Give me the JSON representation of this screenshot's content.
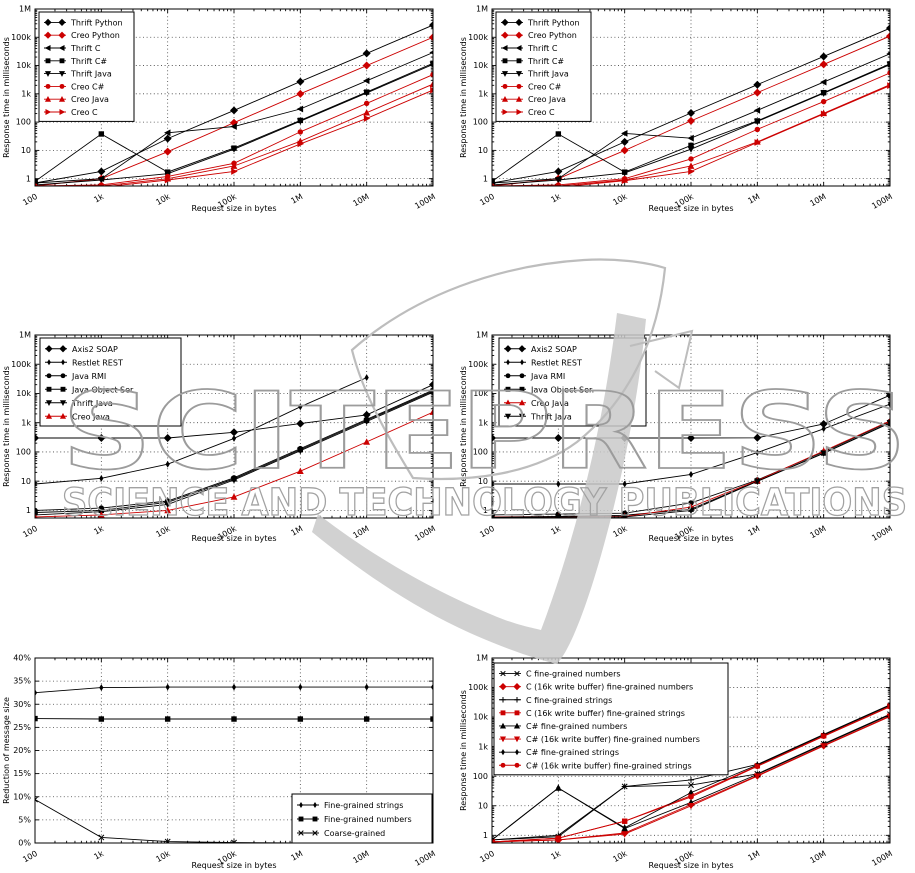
{
  "watermark": {
    "title": "SCITEPRESS",
    "subtitle": "SCIENCE AND TECHNOLOGY PUBLICATIONS",
    "text_color": "#9c9c9c",
    "shape_color": "#c9c9c9",
    "outline_color": "#bdbdbd"
  },
  "shared": {
    "xlabel": "Request size in bytes",
    "x_values": [
      100,
      1000,
      10000,
      100000,
      1000000,
      10000000,
      100000000
    ],
    "x_tick_labels": [
      "100",
      "1k",
      "10k",
      "100k",
      "1M",
      "10M",
      "100M"
    ],
    "colors": {
      "black": "#000000",
      "red": "#cc0000"
    }
  },
  "chart_data": [
    {
      "id": "thrift-vs-creo-a",
      "grid_position": "top-left",
      "type": "line",
      "xscale": "log",
      "yscale": "log",
      "xlabel": "Request size in bytes",
      "ylabel": "Response time in milliseconds",
      "ylim": [
        0.55,
        1000000
      ],
      "y_tick_values": [
        1,
        10,
        100,
        1000,
        10000,
        100000,
        1000000
      ],
      "y_tick_labels": [
        "1",
        "10",
        "100",
        "1k",
        "10k",
        "100k",
        "1M"
      ],
      "legend_position": "top-left",
      "series": [
        {
          "name": "Thrift Python",
          "color": "black",
          "marker": "diamond",
          "values": [
            0.7,
            1.8,
            26,
            260,
            2700,
            27000,
            270000
          ]
        },
        {
          "name": "Creo Python",
          "color": "red",
          "marker": "diamond",
          "values": [
            0.55,
            1.0,
            9,
            95,
            1000,
            10000,
            100000
          ]
        },
        {
          "name": "Thrift C",
          "color": "black",
          "marker": "tri_left",
          "values": [
            0.7,
            1.0,
            42,
            70,
            290,
            2900,
            29000
          ]
        },
        {
          "name": "Thrift C#",
          "color": "black",
          "marker": "square",
          "values": [
            0.8,
            38,
            1.7,
            12,
            115,
            1150,
            12000
          ]
        },
        {
          "name": "Thrift Java",
          "color": "black",
          "marker": "tri_down",
          "values": [
            0.6,
            0.9,
            1.5,
            11,
            108,
            1080,
            11000
          ]
        },
        {
          "name": "Creo C#",
          "color": "red",
          "marker": "circle",
          "values": [
            0.55,
            0.6,
            1.2,
            3.5,
            45,
            460,
            4800
          ]
        },
        {
          "name": "Creo Java",
          "color": "red",
          "marker": "tri_up",
          "values": [
            0.5,
            0.55,
            1.0,
            2.8,
            21,
            215,
            2200
          ]
        },
        {
          "name": "Creo C",
          "color": "red",
          "marker": "tri_right",
          "values": [
            0.5,
            0.5,
            0.9,
            1.8,
            17,
            135,
            1350
          ]
        }
      ]
    },
    {
      "id": "thrift-vs-creo-b",
      "grid_position": "top-right",
      "type": "line",
      "xscale": "log",
      "yscale": "log",
      "xlabel": "Request size in bytes",
      "ylabel": "Response time in milliseconds",
      "ylim": [
        0.55,
        1000000
      ],
      "y_tick_values": [
        1,
        10,
        100,
        1000,
        10000,
        100000,
        1000000
      ],
      "y_tick_labels": [
        "1",
        "10",
        "100",
        "1k",
        "10k",
        "100k",
        "1M"
      ],
      "legend_position": "top-left",
      "series": [
        {
          "name": "Thrift Python",
          "color": "black",
          "marker": "diamond",
          "values": [
            0.7,
            1.8,
            20,
            210,
            2100,
            21000,
            210000
          ]
        },
        {
          "name": "Creo Python",
          "color": "red",
          "marker": "diamond",
          "values": [
            0.55,
            1.0,
            10,
            110,
            1100,
            11000,
            110000
          ]
        },
        {
          "name": "Thrift C",
          "color": "black",
          "marker": "tri_left",
          "values": [
            0.7,
            1.0,
            40,
            27,
            260,
            2600,
            26000
          ]
        },
        {
          "name": "Thrift C#",
          "color": "black",
          "marker": "square",
          "values": [
            0.8,
            38,
            1.7,
            15,
            110,
            1100,
            11500
          ]
        },
        {
          "name": "Thrift Java",
          "color": "black",
          "marker": "tri_down",
          "values": [
            0.6,
            0.9,
            1.6,
            11,
            105,
            1050,
            10800
          ]
        },
        {
          "name": "Creo C#",
          "color": "red",
          "marker": "circle",
          "values": [
            0.55,
            0.6,
            1.0,
            5,
            55,
            530,
            5500
          ]
        },
        {
          "name": "Creo Java",
          "color": "red",
          "marker": "tri_up",
          "values": [
            0.5,
            0.55,
            0.9,
            2.8,
            20,
            205,
            2100
          ]
        },
        {
          "name": "Creo C",
          "color": "red",
          "marker": "tri_right",
          "values": [
            0.5,
            0.5,
            0.85,
            1.8,
            19,
            195,
            1950
          ]
        }
      ]
    },
    {
      "id": "middleware-strings-c",
      "grid_position": "middle-left",
      "type": "line",
      "xscale": "log",
      "yscale": "log",
      "xlabel": "Request size in bytes",
      "ylabel": "Response time in milliseconds",
      "ylim": [
        0.55,
        1000000
      ],
      "y_tick_values": [
        1,
        10,
        100,
        1000,
        10000,
        100000,
        1000000
      ],
      "y_tick_labels": [
        "1",
        "10",
        "100",
        "1k",
        "10k",
        "100k",
        "1M"
      ],
      "legend_position": "top-left",
      "series": [
        {
          "name": "Axis2 SOAP",
          "color": "black",
          "marker": "diamond",
          "values": [
            300,
            300,
            300,
            470,
            930,
            1850,
            20000
          ]
        },
        {
          "name": "Restlet REST",
          "color": "black",
          "marker": "thin_diamond",
          "values": [
            8,
            12.5,
            38,
            290,
            3500,
            35000,
            null
          ]
        },
        {
          "name": "Java RMI",
          "color": "black",
          "marker": "circle",
          "values": [
            1.0,
            1.2,
            2.1,
            13,
            130,
            1300,
            13000
          ]
        },
        {
          "name": "Java Object Ser.",
          "color": "black",
          "marker": "square",
          "values": [
            0.85,
            1.0,
            1.9,
            12,
            120,
            1200,
            12000
          ]
        },
        {
          "name": "Thrift Java",
          "color": "black",
          "marker": "tri_down",
          "values": [
            0.7,
            0.9,
            1.6,
            11,
            110,
            1100,
            11000
          ]
        },
        {
          "name": "Creo Java",
          "color": "red",
          "marker": "tri_up",
          "values": [
            0.6,
            0.7,
            1.0,
            2.9,
            22,
            220,
            2300
          ]
        }
      ]
    },
    {
      "id": "middleware-numbers-d",
      "grid_position": "middle-right",
      "type": "line",
      "xscale": "log",
      "yscale": "log",
      "xlabel": "Request size in bytes",
      "ylabel": "Response time in milliseconds",
      "ylim": [
        0.55,
        1000000
      ],
      "y_tick_values": [
        1,
        10,
        100,
        1000,
        10000,
        100000,
        1000000
      ],
      "y_tick_labels": [
        "1",
        "10",
        "100",
        "1k",
        "10k",
        "100k",
        "1M"
      ],
      "legend_position": "top-left",
      "series": [
        {
          "name": "Axis2 SOAP",
          "color": "black",
          "marker": "diamond",
          "values": [
            300,
            300,
            300,
            300,
            305,
            900,
            8700
          ]
        },
        {
          "name": "Restlet REST",
          "color": "black",
          "marker": "thin_diamond",
          "values": [
            8,
            8,
            8,
            17,
            95,
            620,
            4300
          ]
        },
        {
          "name": "Java RMI",
          "color": "black",
          "marker": "circle",
          "values": [
            0.7,
            0.75,
            0.8,
            1.8,
            11,
            100,
            1100
          ]
        },
        {
          "name": "Java Object Ser.",
          "color": "black",
          "marker": "square",
          "values": [
            0.6,
            0.62,
            0.68,
            1.1,
            10,
            92,
            1000
          ]
        },
        {
          "name": "Creo Java",
          "color": "red",
          "marker": "tri_up",
          "values": [
            0.6,
            0.6,
            0.62,
            1.3,
            10.5,
            108,
            1150
          ]
        },
        {
          "name": "Thrift Java",
          "color": "black",
          "marker": "tri_down",
          "values": [
            0.58,
            0.6,
            0.6,
            1.0,
            9.8,
            90,
            980
          ]
        }
      ]
    },
    {
      "id": "message-size-reduction-e",
      "grid_position": "bottom-left",
      "type": "line",
      "xscale": "log",
      "yscale": "linear",
      "xlabel": "Request size in bytes",
      "ylabel": "Reduction of message size",
      "ylim": [
        0,
        40
      ],
      "y_tick_values": [
        0,
        5,
        10,
        15,
        20,
        25,
        30,
        35,
        40
      ],
      "y_tick_labels": [
        "0%",
        "5%",
        "10%",
        "15%",
        "20%",
        "25%",
        "30%",
        "35%",
        "40%"
      ],
      "legend_position": "bottom-right",
      "series": [
        {
          "name": "Fine-grained strings",
          "color": "black",
          "marker": "thin_diamond",
          "values": [
            32.5,
            33.6,
            33.7,
            33.7,
            33.7,
            33.7,
            33.7
          ]
        },
        {
          "name": "Fine-grained numbers",
          "color": "black",
          "marker": "square",
          "values": [
            26.9,
            26.8,
            26.8,
            26.8,
            26.8,
            26.8,
            26.8
          ]
        },
        {
          "name": "Coarse-grained",
          "color": "black",
          "marker": "x",
          "values": [
            9.4,
            1.2,
            0.3,
            0.08,
            0.03,
            0.01,
            0.005
          ]
        }
      ]
    },
    {
      "id": "write-buffer-f",
      "grid_position": "bottom-right",
      "type": "line",
      "xscale": "log",
      "yscale": "log",
      "xlabel": "Request size in bytes",
      "ylabel": "Response time in milliseconds",
      "ylim": [
        0.55,
        1000000
      ],
      "y_tick_values": [
        1,
        10,
        100,
        1000,
        10000,
        100000,
        1000000
      ],
      "y_tick_labels": [
        "1",
        "10",
        "100",
        "1k",
        "10k",
        "100k",
        "1M"
      ],
      "legend_position": "top-left",
      "series": [
        {
          "name": "C fine-grained numbers",
          "color": "black",
          "marker": "x",
          "values": [
            0.7,
            0.9,
            45,
            50,
            120,
            1250,
            12500
          ]
        },
        {
          "name": "C (16k write buffer) fine-grained numbers",
          "color": "red",
          "marker": "diamond",
          "values": [
            0.6,
            0.7,
            1.2,
            11,
            105,
            1100,
            11000
          ]
        },
        {
          "name": "C fine-grained strings",
          "color": "black",
          "marker": "plus",
          "values": [
            0.7,
            1.0,
            45,
            75,
            250,
            2600,
            26000
          ]
        },
        {
          "name": "C (16k write buffer) fine-grained strings",
          "color": "red",
          "marker": "square",
          "values": [
            0.6,
            0.8,
            3.0,
            22,
            225,
            2350,
            23500
          ]
        },
        {
          "name": "C# fine-grained numbers",
          "color": "black",
          "marker": "tri_up",
          "values": [
            0.7,
            40,
            1.7,
            13,
            115,
            1200,
            12000
          ]
        },
        {
          "name": "C# (16k write buffer) fine-grained numbers",
          "color": "red",
          "marker": "tri_down",
          "values": [
            0.6,
            0.7,
            1.1,
            10,
            100,
            1050,
            10500
          ]
        },
        {
          "name": "C# fine-grained strings",
          "color": "black",
          "marker": "thin_diamond",
          "values": [
            0.7,
            40,
            1.8,
            28,
            240,
            2500,
            25000
          ]
        },
        {
          "name": "C# (16k write buffer) fine-grained strings",
          "color": "red",
          "marker": "circle",
          "values": [
            0.6,
            0.8,
            3.0,
            20,
            215,
            2250,
            22500
          ]
        }
      ]
    }
  ]
}
